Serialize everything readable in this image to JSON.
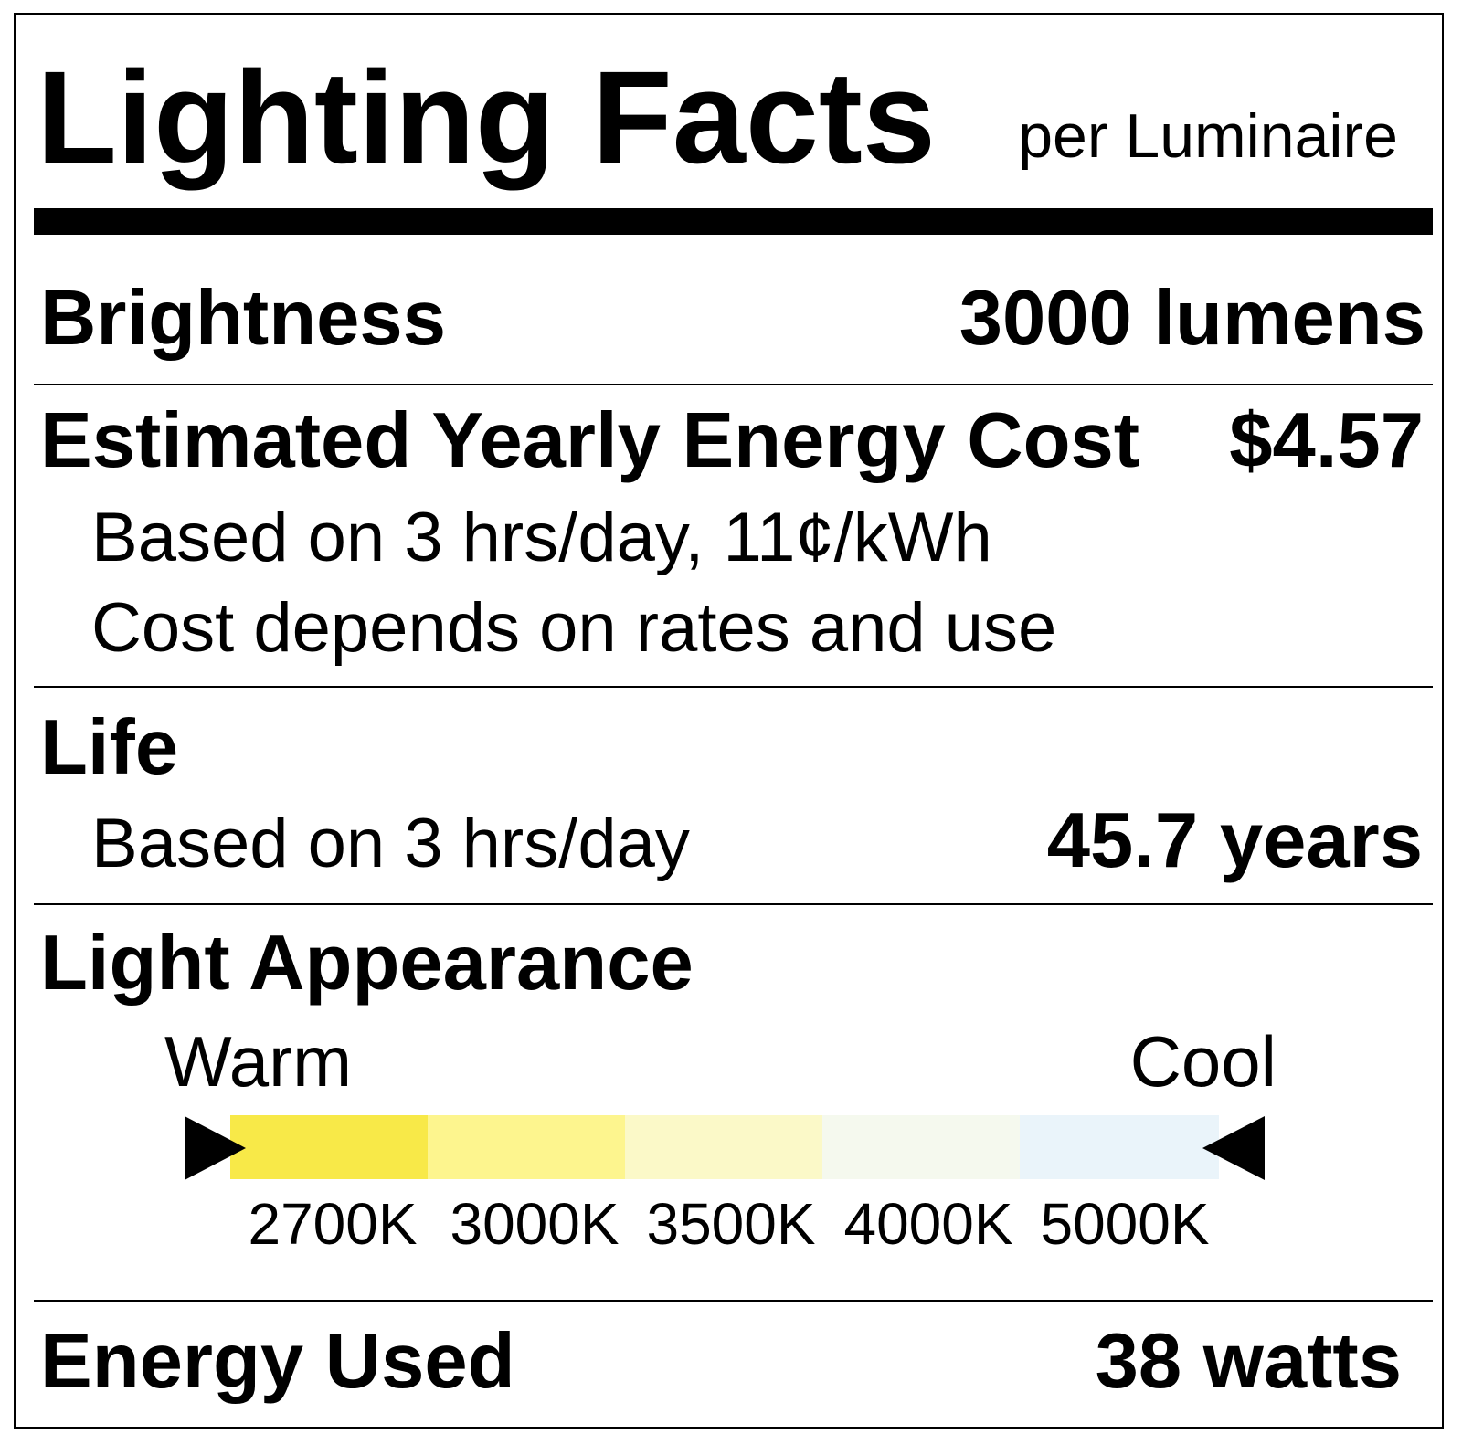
{
  "header": {
    "title": "Lighting Facts",
    "subtitle": "per Luminaire"
  },
  "brightness": {
    "label": "Brightness",
    "value": "3000 lumens"
  },
  "energy_cost": {
    "label": "Estimated Yearly Energy Cost",
    "value": "$4.57",
    "note1": "Based on 3 hrs/day, 11¢/kWh",
    "note2": "Cost depends on rates and use"
  },
  "life": {
    "label": "Life",
    "note": "Based on 3 hrs/day",
    "value": "45.7 years"
  },
  "light_appearance": {
    "label": "Light Appearance",
    "warm_label": "Warm",
    "cool_label": "Cool",
    "scale": [
      {
        "label": "2700K",
        "color": "#f8e948"
      },
      {
        "label": "3000K",
        "color": "#fdf58e"
      },
      {
        "label": "3500K",
        "color": "#fbf9c8"
      },
      {
        "label": "4000K",
        "color": "#f5f9ee"
      },
      {
        "label": "5000K",
        "color": "#eaf4fa"
      }
    ]
  },
  "energy_used": {
    "label": "Energy Used",
    "value": "38 watts"
  }
}
